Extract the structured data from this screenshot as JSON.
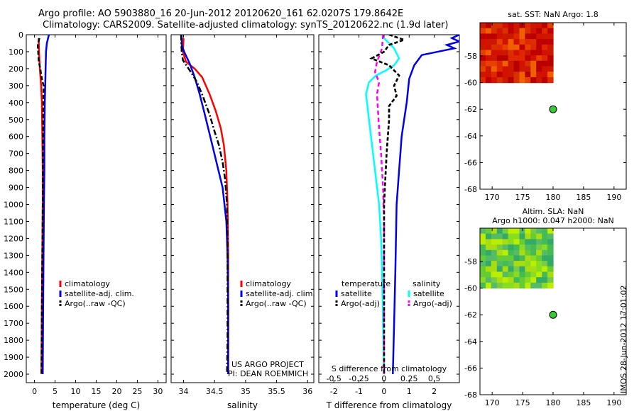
{
  "header": {
    "title_line1": "Argo profile: AO 5903880_16 20-Jun-2012 20120620_161 62.0207S 179.8642E",
    "title_line2": "Climatology: CARS2009. Satellite-adjusted climatology: synTS_20120622.nc (1.9d later)"
  },
  "side_label": "IMOS 28-Jun-2012 17:01:02",
  "colors": {
    "climatology": "#ff0000",
    "satellite": "#0000ee",
    "argo": "#000000",
    "cyan": "#00ffff",
    "magenta": "#ff00ff",
    "marker": "#33cc33"
  },
  "chart_data": [
    {
      "id": "temperature",
      "type": "line",
      "xlabel": "temperature (deg C)",
      "ylabel": "",
      "xlim": [
        -2,
        32
      ],
      "ylim": [
        2050,
        0
      ],
      "xticks": [
        0,
        5,
        10,
        15,
        20,
        25,
        30
      ],
      "yticks": [
        0,
        100,
        200,
        300,
        400,
        500,
        600,
        700,
        800,
        900,
        1000,
        1100,
        1200,
        1300,
        1400,
        1500,
        1600,
        1700,
        1800,
        1900,
        2000
      ],
      "legend": [
        "climatology",
        "satellite-adj. clim.",
        "Argo(..raw -QC)"
      ],
      "series": [
        {
          "name": "climatology",
          "color": "#ff0000",
          "dash": "",
          "points": [
            [
              1.0,
              20
            ],
            [
              1.1,
              100
            ],
            [
              1.3,
              200
            ],
            [
              1.6,
              300
            ],
            [
              1.8,
              400
            ],
            [
              1.9,
              600
            ],
            [
              2.0,
              800
            ],
            [
              2.0,
              1000
            ],
            [
              1.9,
              1300
            ],
            [
              1.8,
              1600
            ],
            [
              1.7,
              2000
            ]
          ]
        },
        {
          "name": "satellite-adj. clim.",
          "color": "#0000ee",
          "dash": "",
          "points": [
            [
              3.5,
              0
            ],
            [
              3.0,
              50
            ],
            [
              2.8,
              100
            ],
            [
              2.7,
              200
            ],
            [
              2.6,
              300
            ],
            [
              2.5,
              400
            ],
            [
              2.4,
              600
            ],
            [
              2.4,
              800
            ],
            [
              2.3,
              1000
            ],
            [
              2.2,
              1300
            ],
            [
              2.1,
              1600
            ],
            [
              2.0,
              2000
            ]
          ]
        },
        {
          "name": "Argo(..raw -QC)",
          "color": "#000000",
          "dash": "6,3",
          "points": [
            [
              1.2,
              20
            ],
            [
              0.8,
              60
            ],
            [
              1.0,
              150
            ],
            [
              1.4,
              200
            ],
            [
              1.8,
              260
            ],
            [
              2.2,
              300
            ],
            [
              2.1,
              500
            ],
            [
              2.0,
              700
            ],
            [
              2.0,
              1000
            ],
            [
              1.9,
              1300
            ],
            [
              1.8,
              1600
            ],
            [
              1.7,
              2000
            ]
          ]
        }
      ]
    },
    {
      "id": "salinity",
      "type": "line",
      "xlabel": "salinity",
      "ylabel": "",
      "xlim": [
        33.8,
        36.1
      ],
      "ylim": [
        2050,
        0
      ],
      "xticks": [
        34,
        34.5,
        35,
        35.5,
        36
      ],
      "legend": [
        "climatology",
        "satellite-adj. clim.",
        "Argo(..raw -QC)"
      ],
      "series": [
        {
          "name": "climatology",
          "color": "#ff0000",
          "dash": "",
          "points": [
            [
              34.0,
              20
            ],
            [
              33.99,
              100
            ],
            [
              34.04,
              160
            ],
            [
              34.18,
              200
            ],
            [
              34.3,
              250
            ],
            [
              34.42,
              350
            ],
            [
              34.52,
              450
            ],
            [
              34.6,
              550
            ],
            [
              34.65,
              650
            ],
            [
              34.69,
              800
            ],
            [
              34.71,
              1000
            ],
            [
              34.72,
              1300
            ],
            [
              34.72,
              1600
            ],
            [
              34.72,
              2000
            ]
          ]
        },
        {
          "name": "satellite-adj. clim.",
          "color": "#0000ee",
          "dash": "",
          "points": [
            [
              33.97,
              0
            ],
            [
              33.97,
              60
            ],
            [
              34.01,
              100
            ],
            [
              34.1,
              170
            ],
            [
              34.18,
              250
            ],
            [
              34.26,
              350
            ],
            [
              34.33,
              450
            ],
            [
              34.43,
              600
            ],
            [
              34.53,
              750
            ],
            [
              34.63,
              900
            ],
            [
              34.69,
              1100
            ],
            [
              34.71,
              1300
            ],
            [
              34.72,
              1600
            ],
            [
              34.72,
              2000
            ]
          ]
        },
        {
          "name": "Argo(..raw -QC)",
          "color": "#000000",
          "dash": "8,3,2,3",
          "points": [
            [
              33.96,
              0
            ],
            [
              33.97,
              100
            ],
            [
              33.99,
              150
            ],
            [
              34.1,
              210
            ],
            [
              34.22,
              280
            ],
            [
              34.32,
              370
            ],
            [
              34.42,
              470
            ],
            [
              34.5,
              570
            ],
            [
              34.57,
              650
            ],
            [
              34.63,
              750
            ],
            [
              34.67,
              850
            ],
            [
              34.7,
              1000
            ],
            [
              34.71,
              1200
            ],
            [
              34.71,
              1500
            ],
            [
              34.71,
              1800
            ],
            [
              34.7,
              2000
            ]
          ]
        }
      ]
    },
    {
      "id": "difference",
      "type": "line",
      "xlabel": "T difference from climatology",
      "x2label": "S difference from climatology",
      "xlim": [
        -2.6,
        3.0
      ],
      "x2lim": [
        -0.65,
        0.75
      ],
      "ylim": [
        2050,
        0
      ],
      "xticks": [
        -2,
        -1,
        0,
        1,
        2
      ],
      "x2ticks": [
        -0.5,
        -0.25,
        0,
        0.25,
        0.5
      ],
      "x2ticklabels": [
        "-0.5",
        "-0.25",
        "0",
        "0.25",
        "0.5"
      ],
      "legend": {
        "temperature_heading": "temperature",
        "salinity_heading": "salinity",
        "temperature": [
          "satellite",
          "Argo(-adj)"
        ],
        "salinity": [
          "satellite",
          "Argo(-adj)"
        ]
      },
      "series": [
        {
          "name": "temperature satellite",
          "color": "#0000ee",
          "dash": "",
          "points": [
            [
              3.0,
              0
            ],
            [
              2.7,
              20
            ],
            [
              3.0,
              40
            ],
            [
              2.5,
              60
            ],
            [
              2.8,
              80
            ],
            [
              1.5,
              120
            ],
            [
              1.2,
              180
            ],
            [
              1.0,
              260
            ],
            [
              0.9,
              400
            ],
            [
              0.8,
              500
            ],
            [
              0.7,
              600
            ],
            [
              0.6,
              800
            ],
            [
              0.5,
              1000
            ],
            [
              0.45,
              1400
            ],
            [
              0.4,
              1700
            ],
            [
              0.35,
              2000
            ]
          ]
        },
        {
          "name": "temperature Argo(-adj)",
          "color": "#000000",
          "dash": "5,3",
          "points": [
            [
              0.2,
              0
            ],
            [
              0.8,
              30
            ],
            [
              0.2,
              60
            ],
            [
              0.0,
              100
            ],
            [
              -0.5,
              140
            ],
            [
              0.2,
              180
            ],
            [
              0.6,
              240
            ],
            [
              0.4,
              300
            ],
            [
              0.5,
              360
            ],
            [
              0.2,
              420
            ],
            [
              0.2,
              500
            ],
            [
              0.1,
              700
            ],
            [
              0.0,
              1000
            ],
            [
              0.0,
              1300
            ],
            [
              0.0,
              1600
            ],
            [
              0.0,
              2000
            ]
          ]
        }
      ],
      "series_salinity": [
        {
          "name": "salinity satellite",
          "color": "#00ffff",
          "dash": "",
          "points": [
            [
              0.0,
              20
            ],
            [
              0.1,
              80
            ],
            [
              0.15,
              140
            ],
            [
              0.1,
              180
            ],
            [
              0.02,
              210
            ],
            [
              -0.08,
              240
            ],
            [
              -0.15,
              280
            ],
            [
              -0.18,
              350
            ],
            [
              -0.16,
              450
            ],
            [
              -0.14,
              550
            ],
            [
              -0.12,
              650
            ],
            [
              -0.1,
              750
            ],
            [
              -0.07,
              900
            ],
            [
              -0.05,
              1000
            ],
            [
              -0.03,
              1200
            ],
            [
              -0.02,
              1400
            ],
            [
              -0.01,
              1700
            ],
            [
              0.0,
              2000
            ]
          ]
        },
        {
          "name": "salinity Argo(-adj)",
          "color": "#ff00ff",
          "dash": "6,4",
          "points": [
            [
              -0.01,
              0
            ],
            [
              -0.02,
              80
            ],
            [
              -0.07,
              160
            ],
            [
              -0.09,
              220
            ],
            [
              -0.05,
              280
            ],
            [
              -0.07,
              350
            ],
            [
              -0.06,
              450
            ],
            [
              -0.05,
              550
            ],
            [
              -0.03,
              700
            ],
            [
              -0.01,
              900
            ],
            [
              0.0,
              1100
            ],
            [
              0.0,
              1400
            ],
            [
              0.0,
              1700
            ],
            [
              0.0,
              2000
            ]
          ]
        }
      ]
    },
    {
      "id": "sst_map",
      "type": "heatmap",
      "title": "sat. SST: NaN Argo: 1.8",
      "xlim": [
        168,
        192
      ],
      "ylim": [
        -68,
        -55.5
      ],
      "xticks": [
        170,
        175,
        180,
        185,
        190
      ],
      "yticks": [
        -58,
        -60,
        -62,
        -64,
        -66,
        -68
      ],
      "argo_position": [
        180,
        -62
      ],
      "patch": {
        "lon": [
          168,
          180
        ],
        "lat": [
          -60,
          -55.5
        ]
      }
    },
    {
      "id": "sla_map",
      "type": "heatmap",
      "title": "Altim. SLA: NaN",
      "subtitle": "Argo h1000: 0.047 h2000: NaN",
      "xlim": [
        168,
        192
      ],
      "ylim": [
        -68,
        -55.5
      ],
      "xticks": [
        170,
        175,
        180,
        185,
        190
      ],
      "yticks": [
        -58,
        -60,
        -62,
        -64,
        -66,
        -68
      ],
      "argo_position": [
        180,
        -62
      ],
      "patch": {
        "lon": [
          168,
          180
        ],
        "lat": [
          -60,
          -55.5
        ]
      }
    }
  ],
  "annotation": {
    "line1": "US ARGO PROJECT",
    "line2": "PI: DEAN ROEMMICH"
  }
}
